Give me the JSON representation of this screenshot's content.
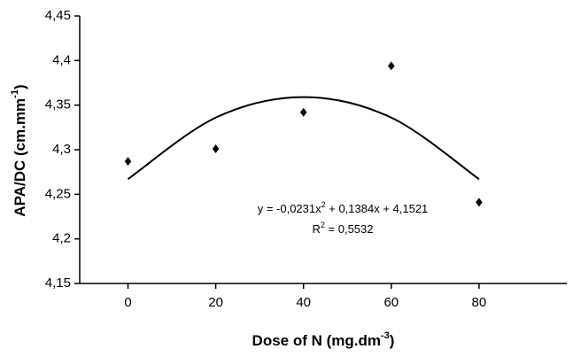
{
  "chart_data": {
    "type": "scatter",
    "x_label": [
      "Dose of N (mg.dm",
      "-3",
      ")"
    ],
    "y_label": [
      "APA/DC (cm.mm",
      "-1",
      ")"
    ],
    "x": [
      0,
      20,
      40,
      60,
      80
    ],
    "series": [
      {
        "kind": "points",
        "color": "#000000",
        "values": [
          4.287,
          4.301,
          4.342,
          4.394,
          4.241
        ]
      },
      {
        "kind": "trend",
        "color": "#000000",
        "values": [
          4.267,
          4.336,
          4.359,
          4.336,
          4.267
        ]
      }
    ],
    "equation": [
      "y = -0,0231x",
      "2",
      " + 0,1384x + 4,1521"
    ],
    "r_squared": [
      "R",
      "2",
      " = 0,5532"
    ],
    "xlim": [
      -11,
      100
    ],
    "xticks": [
      0,
      20,
      40,
      60,
      80
    ],
    "ylim": [
      4.15,
      4.45
    ],
    "yticks": [
      {
        "value": 4.15,
        "label": "4,15"
      },
      {
        "value": 4.2,
        "label": "4,2"
      },
      {
        "value": 4.25,
        "label": "4,25"
      },
      {
        "value": 4.3,
        "label": "4,3"
      },
      {
        "value": 4.35,
        "label": "4,35"
      },
      {
        "value": 4.4,
        "label": "4,4"
      },
      {
        "value": 4.45,
        "label": "4,45"
      }
    ]
  }
}
